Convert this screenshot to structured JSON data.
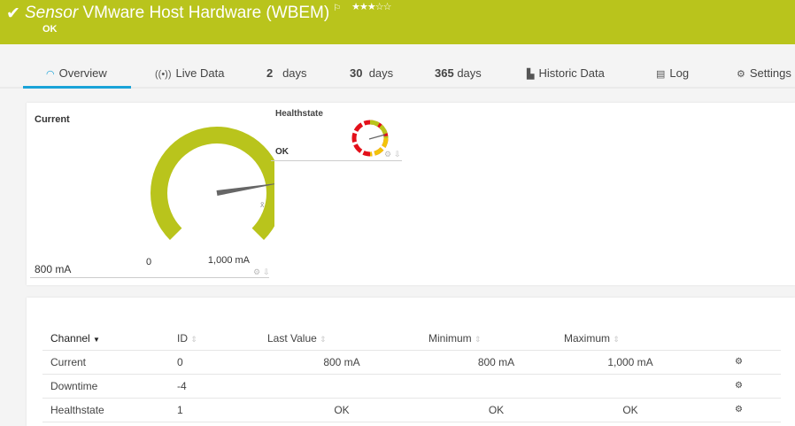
{
  "header": {
    "title_prefix": "Sensor",
    "title": "VMware Host Hardware (WBEM)",
    "status": "OK",
    "check_icon": "check-icon",
    "flag_icon": "flag-icon",
    "stars": "★★★☆☆",
    "priority": 3,
    "color": "#b9c41c"
  },
  "tabs": [
    {
      "label": "Overview",
      "icon": "gauge-icon",
      "active": true
    },
    {
      "label": "Live Data",
      "icon": "broadcast-icon"
    },
    {
      "num": "2",
      "label": "days"
    },
    {
      "num": "30",
      "label": "days"
    },
    {
      "num": "365",
      "label": "days"
    },
    {
      "label": "Historic Data",
      "icon": "area-chart-icon"
    },
    {
      "label": "Log",
      "icon": "list-icon"
    },
    {
      "label": "Settings",
      "icon": "gear-icon"
    }
  ],
  "gauges": {
    "current": {
      "title": "Current",
      "value": "800 mA",
      "min": "0",
      "max": "1,000 mA",
      "fraction": 0.8,
      "avg_marker": "x̄",
      "color": "#b9c41c"
    },
    "healthstate": {
      "title": "Healthstate",
      "value": "OK"
    }
  },
  "table": {
    "headers": [
      "Channel",
      "ID",
      "Last Value",
      "Minimum",
      "Maximum"
    ],
    "rows": [
      {
        "channel": "Current",
        "id": "0",
        "last": "800 mA",
        "min": "800 mA",
        "max": "1,000 mA"
      },
      {
        "channel": "Downtime",
        "id": "-4",
        "last": "",
        "min": "",
        "max": ""
      },
      {
        "channel": "Healthstate",
        "id": "1",
        "last": "OK",
        "min": "OK",
        "max": "OK"
      }
    ]
  }
}
